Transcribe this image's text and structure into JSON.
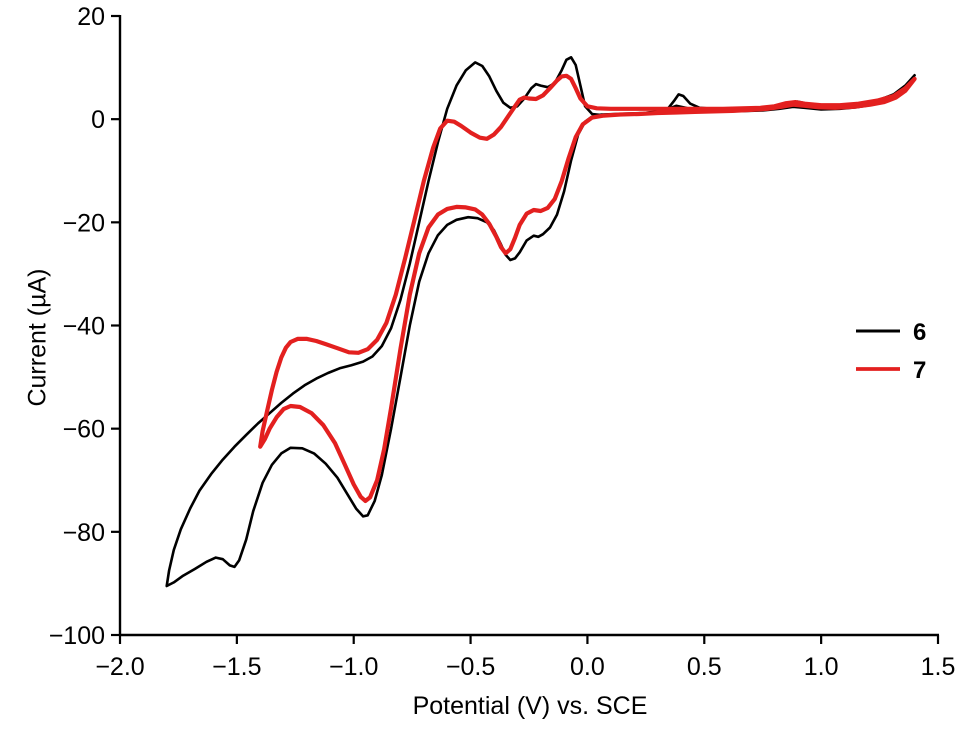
{
  "chart_data": {
    "type": "line",
    "title": "",
    "xlabel": "Potential (V) vs. SCE",
    "ylabel": "Current (µA)",
    "xlim": [
      -2.0,
      1.5
    ],
    "ylim": [
      -100,
      20
    ],
    "grid": false,
    "legend": {
      "position": "middle-right",
      "entries": [
        "6",
        "7"
      ]
    },
    "xticks": {
      "values": [
        -2.0,
        -1.5,
        -1.0,
        -0.5,
        0.0,
        0.5,
        1.0,
        1.5
      ],
      "labels": [
        "−2.0",
        "−1.5",
        "−1.0",
        "−0.5",
        "0.0",
        "0.5",
        "1.0",
        "1.5"
      ]
    },
    "yticks": {
      "values": [
        20,
        0,
        -20,
        -40,
        -60,
        -80,
        -100
      ],
      "labels": [
        "20",
        "0",
        "−20",
        "−40",
        "−60",
        "−80",
        "−100"
      ]
    },
    "series": [
      {
        "name": "6",
        "color": "#000000",
        "width": 2.6,
        "points": [
          [
            1.4,
            8.5
          ],
          [
            1.36,
            6.0
          ],
          [
            1.32,
            4.5
          ],
          [
            1.28,
            3.5
          ],
          [
            1.22,
            2.8
          ],
          [
            1.15,
            2.3
          ],
          [
            1.08,
            2.0
          ],
          [
            1.0,
            1.9
          ],
          [
            0.93,
            2.2
          ],
          [
            0.88,
            2.4
          ],
          [
            0.82,
            2.0
          ],
          [
            0.75,
            1.7
          ],
          [
            0.68,
            1.6
          ],
          [
            0.6,
            1.5
          ],
          [
            0.52,
            1.5
          ],
          [
            0.46,
            1.7
          ],
          [
            0.42,
            2.2
          ],
          [
            0.38,
            2.6
          ],
          [
            0.34,
            1.9
          ],
          [
            0.3,
            1.5
          ],
          [
            0.24,
            1.2
          ],
          [
            0.18,
            1.1
          ],
          [
            0.12,
            1.0
          ],
          [
            0.06,
            0.9
          ],
          [
            0.02,
            0.5
          ],
          [
            -0.01,
            -0.5
          ],
          [
            -0.04,
            -3.0
          ],
          [
            -0.07,
            -8.0
          ],
          [
            -0.1,
            -14.0
          ],
          [
            -0.13,
            -18.5
          ],
          [
            -0.16,
            -21.0
          ],
          [
            -0.19,
            -22.3
          ],
          [
            -0.21,
            -22.8
          ],
          [
            -0.23,
            -22.6
          ],
          [
            -0.26,
            -23.5
          ],
          [
            -0.29,
            -25.8
          ],
          [
            -0.31,
            -27.0
          ],
          [
            -0.33,
            -27.3
          ],
          [
            -0.35,
            -26.3
          ],
          [
            -0.37,
            -24.3
          ],
          [
            -0.4,
            -21.5
          ],
          [
            -0.43,
            -20.0
          ],
          [
            -0.47,
            -19.2
          ],
          [
            -0.51,
            -19.0
          ],
          [
            -0.56,
            -19.5
          ],
          [
            -0.6,
            -20.5
          ],
          [
            -0.64,
            -22.5
          ],
          [
            -0.68,
            -26.0
          ],
          [
            -0.72,
            -31.5
          ],
          [
            -0.76,
            -40.0
          ],
          [
            -0.8,
            -50.0
          ],
          [
            -0.84,
            -60.0
          ],
          [
            -0.88,
            -69.0
          ],
          [
            -0.91,
            -74.0
          ],
          [
            -0.94,
            -76.8
          ],
          [
            -0.96,
            -77.0
          ],
          [
            -0.99,
            -75.5
          ],
          [
            -1.03,
            -72.5
          ],
          [
            -1.07,
            -69.5
          ],
          [
            -1.12,
            -66.8
          ],
          [
            -1.17,
            -64.8
          ],
          [
            -1.22,
            -63.8
          ],
          [
            -1.27,
            -63.7
          ],
          [
            -1.31,
            -64.8
          ],
          [
            -1.35,
            -67.0
          ],
          [
            -1.39,
            -70.5
          ],
          [
            -1.43,
            -76.0
          ],
          [
            -1.46,
            -81.5
          ],
          [
            -1.49,
            -85.5
          ],
          [
            -1.51,
            -86.8
          ],
          [
            -1.53,
            -86.5
          ],
          [
            -1.56,
            -85.3
          ],
          [
            -1.59,
            -85.0
          ],
          [
            -1.63,
            -85.8
          ],
          [
            -1.68,
            -87.2
          ],
          [
            -1.73,
            -88.5
          ],
          [
            -1.77,
            -89.8
          ],
          [
            -1.8,
            -90.5
          ],
          [
            -1.79,
            -87.5
          ],
          [
            -1.77,
            -83.5
          ],
          [
            -1.74,
            -79.5
          ],
          [
            -1.7,
            -75.5
          ],
          [
            -1.66,
            -72.0
          ],
          [
            -1.61,
            -68.8
          ],
          [
            -1.56,
            -66.0
          ],
          [
            -1.51,
            -63.5
          ],
          [
            -1.46,
            -61.2
          ],
          [
            -1.41,
            -59.0
          ],
          [
            -1.36,
            -57.0
          ],
          [
            -1.31,
            -55.0
          ],
          [
            -1.26,
            -53.2
          ],
          [
            -1.21,
            -51.6
          ],
          [
            -1.16,
            -50.3
          ],
          [
            -1.11,
            -49.2
          ],
          [
            -1.06,
            -48.3
          ],
          [
            -1.01,
            -47.7
          ],
          [
            -0.96,
            -47.0
          ],
          [
            -0.92,
            -46.0
          ],
          [
            -0.88,
            -44.0
          ],
          [
            -0.84,
            -40.5
          ],
          [
            -0.8,
            -35.0
          ],
          [
            -0.76,
            -28.0
          ],
          [
            -0.72,
            -20.0
          ],
          [
            -0.68,
            -12.0
          ],
          [
            -0.64,
            -4.5
          ],
          [
            -0.6,
            2.0
          ],
          [
            -0.56,
            6.5
          ],
          [
            -0.52,
            9.5
          ],
          [
            -0.48,
            11.0
          ],
          [
            -0.45,
            10.3
          ],
          [
            -0.42,
            8.3
          ],
          [
            -0.39,
            5.5
          ],
          [
            -0.36,
            3.2
          ],
          [
            -0.33,
            2.2
          ],
          [
            -0.3,
            2.5
          ],
          [
            -0.27,
            4.0
          ],
          [
            -0.24,
            6.0
          ],
          [
            -0.22,
            6.8
          ],
          [
            -0.2,
            6.5
          ],
          [
            -0.17,
            6.2
          ],
          [
            -0.14,
            7.0
          ],
          [
            -0.11,
            9.5
          ],
          [
            -0.09,
            11.5
          ],
          [
            -0.07,
            12.0
          ],
          [
            -0.05,
            10.5
          ],
          [
            -0.03,
            6.5
          ],
          [
            -0.01,
            2.5
          ],
          [
            0.02,
            1.0
          ],
          [
            0.06,
            0.8
          ],
          [
            0.12,
            0.8
          ],
          [
            0.18,
            0.9
          ],
          [
            0.24,
            1.0
          ],
          [
            0.3,
            1.3
          ],
          [
            0.34,
            1.8
          ],
          [
            0.37,
            3.5
          ],
          [
            0.39,
            4.8
          ],
          [
            0.41,
            4.5
          ],
          [
            0.44,
            3.0
          ],
          [
            0.48,
            2.2
          ],
          [
            0.54,
            2.0
          ],
          [
            0.6,
            1.9
          ],
          [
            0.68,
            1.9
          ],
          [
            0.76,
            2.0
          ],
          [
            0.82,
            2.3
          ],
          [
            0.87,
            3.0
          ],
          [
            0.9,
            3.4
          ],
          [
            0.94,
            3.0
          ],
          [
            1.0,
            2.6
          ],
          [
            1.08,
            2.6
          ],
          [
            1.16,
            2.9
          ],
          [
            1.24,
            3.6
          ],
          [
            1.31,
            4.8
          ],
          [
            1.36,
            6.5
          ],
          [
            1.4,
            8.5
          ]
        ]
      },
      {
        "name": "7",
        "color": "#e3201f",
        "width": 4.2,
        "points": [
          [
            1.4,
            7.8
          ],
          [
            1.36,
            5.5
          ],
          [
            1.32,
            4.2
          ],
          [
            1.27,
            3.3
          ],
          [
            1.21,
            2.8
          ],
          [
            1.14,
            2.4
          ],
          [
            1.06,
            2.2
          ],
          [
            0.99,
            2.3
          ],
          [
            0.93,
            2.6
          ],
          [
            0.88,
            2.8
          ],
          [
            0.83,
            2.4
          ],
          [
            0.77,
            2.0
          ],
          [
            0.7,
            1.8
          ],
          [
            0.62,
            1.6
          ],
          [
            0.54,
            1.5
          ],
          [
            0.46,
            1.4
          ],
          [
            0.38,
            1.3
          ],
          [
            0.3,
            1.2
          ],
          [
            0.22,
            1.0
          ],
          [
            0.14,
            0.9
          ],
          [
            0.07,
            0.7
          ],
          [
            0.02,
            0.3
          ],
          [
            -0.02,
            -1.0
          ],
          [
            -0.05,
            -3.5
          ],
          [
            -0.08,
            -7.5
          ],
          [
            -0.11,
            -12.0
          ],
          [
            -0.14,
            -15.5
          ],
          [
            -0.17,
            -17.2
          ],
          [
            -0.2,
            -17.8
          ],
          [
            -0.23,
            -17.6
          ],
          [
            -0.26,
            -18.3
          ],
          [
            -0.29,
            -20.5
          ],
          [
            -0.31,
            -23.0
          ],
          [
            -0.33,
            -25.2
          ],
          [
            -0.35,
            -26.0
          ],
          [
            -0.37,
            -24.8
          ],
          [
            -0.39,
            -22.8
          ],
          [
            -0.42,
            -20.3
          ],
          [
            -0.45,
            -18.5
          ],
          [
            -0.48,
            -17.5
          ],
          [
            -0.52,
            -17.1
          ],
          [
            -0.56,
            -17.0
          ],
          [
            -0.6,
            -17.4
          ],
          [
            -0.64,
            -18.5
          ],
          [
            -0.68,
            -21.0
          ],
          [
            -0.72,
            -26.0
          ],
          [
            -0.76,
            -34.0
          ],
          [
            -0.8,
            -44.5
          ],
          [
            -0.84,
            -56.0
          ],
          [
            -0.87,
            -64.0
          ],
          [
            -0.9,
            -70.0
          ],
          [
            -0.93,
            -73.3
          ],
          [
            -0.95,
            -74.0
          ],
          [
            -0.97,
            -73.2
          ],
          [
            -1.0,
            -70.8
          ],
          [
            -1.04,
            -66.8
          ],
          [
            -1.08,
            -62.8
          ],
          [
            -1.13,
            -59.3
          ],
          [
            -1.18,
            -57.0
          ],
          [
            -1.23,
            -55.8
          ],
          [
            -1.27,
            -55.6
          ],
          [
            -1.3,
            -56.2
          ],
          [
            -1.33,
            -57.8
          ],
          [
            -1.36,
            -60.0
          ],
          [
            -1.38,
            -62.0
          ],
          [
            -1.4,
            -63.5
          ],
          [
            -1.39,
            -60.5
          ],
          [
            -1.37,
            -56.5
          ],
          [
            -1.35,
            -52.5
          ],
          [
            -1.33,
            -49.0
          ],
          [
            -1.31,
            -46.2
          ],
          [
            -1.29,
            -44.3
          ],
          [
            -1.27,
            -43.2
          ],
          [
            -1.24,
            -42.6
          ],
          [
            -1.2,
            -42.6
          ],
          [
            -1.16,
            -43.0
          ],
          [
            -1.12,
            -43.6
          ],
          [
            -1.07,
            -44.4
          ],
          [
            -1.02,
            -45.2
          ],
          [
            -0.98,
            -45.3
          ],
          [
            -0.94,
            -44.6
          ],
          [
            -0.9,
            -42.8
          ],
          [
            -0.86,
            -39.5
          ],
          [
            -0.82,
            -34.0
          ],
          [
            -0.78,
            -27.0
          ],
          [
            -0.74,
            -19.5
          ],
          [
            -0.7,
            -12.0
          ],
          [
            -0.66,
            -5.5
          ],
          [
            -0.63,
            -1.8
          ],
          [
            -0.6,
            -0.3
          ],
          [
            -0.57,
            -0.5
          ],
          [
            -0.54,
            -1.3
          ],
          [
            -0.5,
            -2.6
          ],
          [
            -0.46,
            -3.6
          ],
          [
            -0.43,
            -3.8
          ],
          [
            -0.4,
            -3.0
          ],
          [
            -0.37,
            -1.5
          ],
          [
            -0.34,
            0.5
          ],
          [
            -0.31,
            2.5
          ],
          [
            -0.29,
            3.8
          ],
          [
            -0.27,
            4.2
          ],
          [
            -0.25,
            4.0
          ],
          [
            -0.22,
            3.9
          ],
          [
            -0.19,
            4.6
          ],
          [
            -0.16,
            6.0
          ],
          [
            -0.13,
            7.5
          ],
          [
            -0.11,
            8.3
          ],
          [
            -0.09,
            8.4
          ],
          [
            -0.07,
            7.8
          ],
          [
            -0.05,
            6.0
          ],
          [
            -0.03,
            4.0
          ],
          [
            0.0,
            2.5
          ],
          [
            0.04,
            2.1
          ],
          [
            0.1,
            2.0
          ],
          [
            0.18,
            2.0
          ],
          [
            0.26,
            2.0
          ],
          [
            0.34,
            2.0
          ],
          [
            0.42,
            2.0
          ],
          [
            0.5,
            2.0
          ],
          [
            0.58,
            2.0
          ],
          [
            0.66,
            2.1
          ],
          [
            0.74,
            2.2
          ],
          [
            0.8,
            2.5
          ],
          [
            0.85,
            3.1
          ],
          [
            0.89,
            3.3
          ],
          [
            0.93,
            3.0
          ],
          [
            1.0,
            2.7
          ],
          [
            1.08,
            2.7
          ],
          [
            1.16,
            3.0
          ],
          [
            1.24,
            3.6
          ],
          [
            1.31,
            4.5
          ],
          [
            1.36,
            6.0
          ],
          [
            1.4,
            7.8
          ]
        ]
      }
    ]
  }
}
